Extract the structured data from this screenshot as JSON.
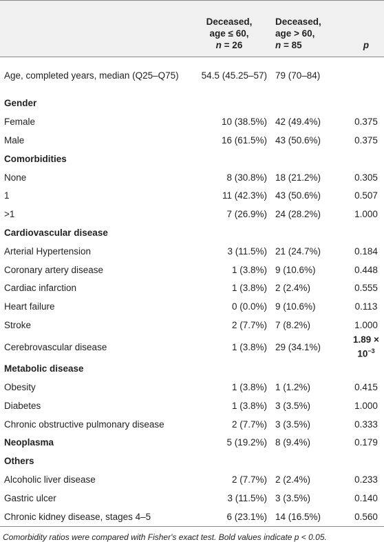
{
  "table": {
    "header": [
      {
        "lines": [
          "Deceased,",
          "age ≤ 60,"
        ],
        "n": "n",
        "count": "= 26"
      },
      {
        "lines": [
          "Deceased,",
          "age > 60,"
        ],
        "n": "n",
        "count": "= 85"
      },
      {
        "lines": [
          "p"
        ]
      }
    ],
    "rows": [
      {
        "label": "Age, completed years, median (Q25–Q75)",
        "values": [
          "54.5 (45.25–57)",
          "79 (70–84)",
          ""
        ]
      },
      {
        "label": "Gender",
        "bold": true
      },
      {
        "label": "Female",
        "values": [
          "10 (38.5%)",
          "42 (49.4%)",
          "0.375"
        ]
      },
      {
        "label": "Male",
        "values": [
          "16 (61.5%)",
          "43 (50.6%)",
          "0.375"
        ]
      },
      {
        "label": "Comorbidities",
        "bold": true
      },
      {
        "label": "None",
        "values": [
          "8 (30.8%)",
          "18 (21.2%)",
          "0.305"
        ]
      },
      {
        "label": "1",
        "values": [
          "11 (42.3%)",
          "43 (50.6%)",
          "0.507"
        ]
      },
      {
        "label": ">1",
        "values": [
          "7 (26.9%)",
          "24 (28.2%)",
          "1.000"
        ]
      },
      {
        "label": "Cardiovascular disease",
        "bold": true
      },
      {
        "label": "Arterial Hypertension",
        "values": [
          "3 (11.5%)",
          "21 (24.7%)",
          "0.184"
        ]
      },
      {
        "label": "Coronary artery disease",
        "values": [
          "1 (3.8%)",
          "9 (10.6%)",
          "0.448"
        ]
      },
      {
        "label": "Cardiac infarction",
        "values": [
          "1 (3.8%)",
          "2 (2.4%)",
          "0.555"
        ]
      },
      {
        "label": "Heart failure",
        "values": [
          "0 (0.0%)",
          "9 (10.6%)",
          "0.113"
        ]
      },
      {
        "label": "Stroke",
        "values": [
          "2 (7.7%)",
          "7 (8.2%)",
          "1.000"
        ]
      },
      {
        "label": "Cerebrovascular disease",
        "values": [
          "1 (3.8%)",
          "29 (34.1%)",
          {
            "text": "1.89 × 10",
            "sup": "−3",
            "bold": true
          }
        ]
      },
      {
        "label": "Metabolic disease",
        "bold": true
      },
      {
        "label": "Obesity",
        "values": [
          "1 (3.8%)",
          "1 (1.2%)",
          "0.415"
        ]
      },
      {
        "label": "Diabetes",
        "values": [
          "1 (3.8%)",
          "3 (3.5%)",
          "1.000"
        ]
      },
      {
        "label": "Chronic obstructive pulmonary disease",
        "values": [
          "2 (7.7%)",
          "3 (3.5%)",
          "0.333"
        ]
      },
      {
        "label": "Neoplasma",
        "bold": true,
        "values": [
          "5 (19.2%)",
          "8 (9.4%)",
          "0.179"
        ]
      },
      {
        "label": "Others",
        "bold": true
      },
      {
        "label": "Alcoholic liver disease",
        "values": [
          "2 (7.7%)",
          "2 (2.4%)",
          "0.233"
        ]
      },
      {
        "label": "Gastric ulcer",
        "values": [
          "3 (11.5%)",
          "3 (3.5%)",
          "0.140"
        ]
      },
      {
        "label": "Chronic kidney disease, stages 4–5",
        "values": [
          "6 (23.1%)",
          "14 (16.5%)",
          "0.560"
        ]
      }
    ]
  },
  "footnote": "Comorbidity ratios were compared with Fisher's exact test. Bold values indicate p < 0.05."
}
